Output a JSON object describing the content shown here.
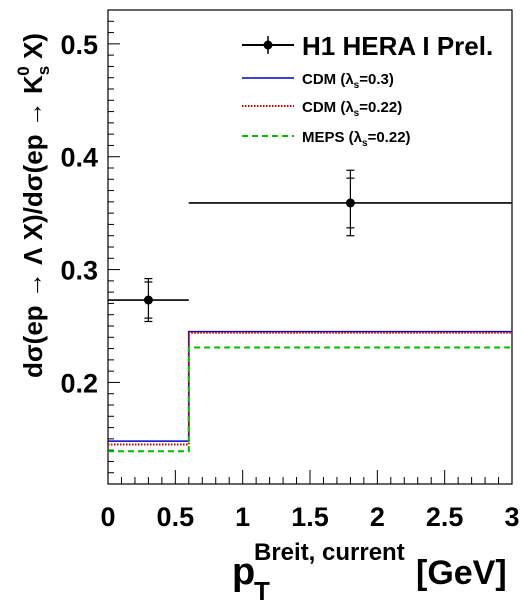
{
  "chart_data": {
    "type": "line",
    "xlim": [
      0,
      3
    ],
    "ylim": [
      0.11,
      0.53
    ],
    "x_ticks": [
      0,
      0.5,
      1,
      1.5,
      2,
      2.5,
      3
    ],
    "x_tick_labels": [
      "0",
      "0.5",
      "1",
      "1.5",
      "2",
      "2.5",
      "3"
    ],
    "y_ticks": [
      0.2,
      0.3,
      0.4,
      0.5
    ],
    "y_tick_labels": [
      "0.2",
      "0.3",
      "0.4",
      "0.5"
    ],
    "xlabel_main": "p",
    "xlabel_sub": "T",
    "xlabel_sup": "Breit, current",
    "xlabel_unit": "[GeV]",
    "ylabel": "dσ(ep → Λ X)/dσ(ep → K",
    "ylabel_sub": "s",
    "ylabel_sup": "0",
    "ylabel_end": " X)",
    "grid": false,
    "legend_position": "top-right",
    "data_points": {
      "name": "H1 HERA I Prel.",
      "color": "#000000",
      "points": [
        {
          "x": 0.3,
          "xlow": 0.0,
          "xhigh": 0.6,
          "y": 0.273,
          "stat_err": 0.016,
          "tot_err": 0.019
        },
        {
          "x": 1.8,
          "xlow": 0.6,
          "xhigh": 3.0,
          "y": 0.359,
          "stat_err": 0.022,
          "tot_err": 0.029
        }
      ]
    },
    "series": [
      {
        "name": "CDM (λ",
        "name_sub": "s",
        "name_end": "=0.3)",
        "color": "#0000cc",
        "style": "solid",
        "edges": [
          0,
          0.6,
          3.0
        ],
        "values": [
          0.148,
          0.245
        ]
      },
      {
        "name": "CDM (λ",
        "name_sub": "s",
        "name_end": "=0.22)",
        "color": "#cc0000",
        "style": "dotted",
        "edges": [
          0,
          0.6,
          3.0
        ],
        "values": [
          0.145,
          0.244
        ]
      },
      {
        "name": "MEPS (λ",
        "name_sub": "s",
        "name_end": "=0.22)",
        "color": "#00bb00",
        "style": "dashed",
        "edges": [
          0,
          0.6,
          3.0
        ],
        "values": [
          0.139,
          0.231
        ]
      }
    ]
  }
}
